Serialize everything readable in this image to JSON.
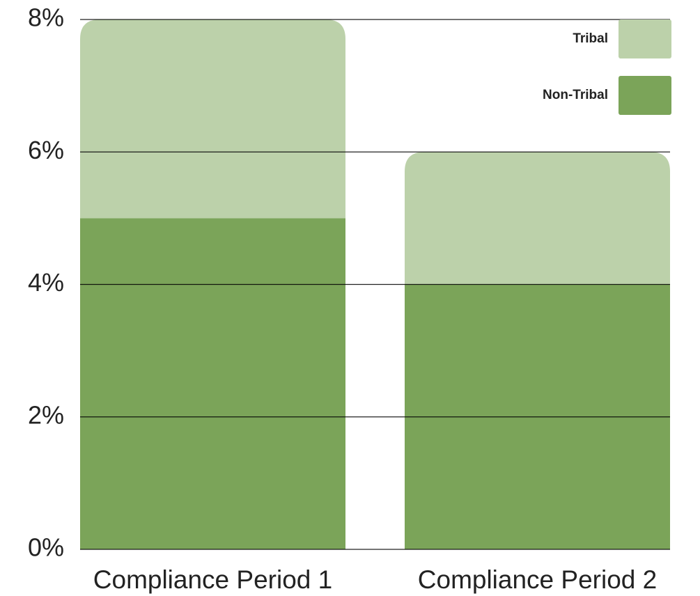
{
  "chart_data": {
    "type": "stacked_bar",
    "categories": [
      "Compliance Period 1",
      "Compliance Period 2"
    ],
    "series": [
      {
        "name": "Non-Tribal",
        "color": "#7ba459",
        "values": [
          5,
          4
        ]
      },
      {
        "name": "Tribal",
        "color": "#bcd1aa",
        "values": [
          3,
          2
        ]
      }
    ],
    "ylim": [
      0,
      8
    ],
    "yticks": [
      {
        "value": 0,
        "label": "0%"
      },
      {
        "value": 2,
        "label": "2%"
      },
      {
        "value": 4,
        "label": "4%"
      },
      {
        "value": 6,
        "label": "6%"
      },
      {
        "value": 8,
        "label": "8%"
      }
    ],
    "grid": true,
    "legend": "top-right"
  }
}
